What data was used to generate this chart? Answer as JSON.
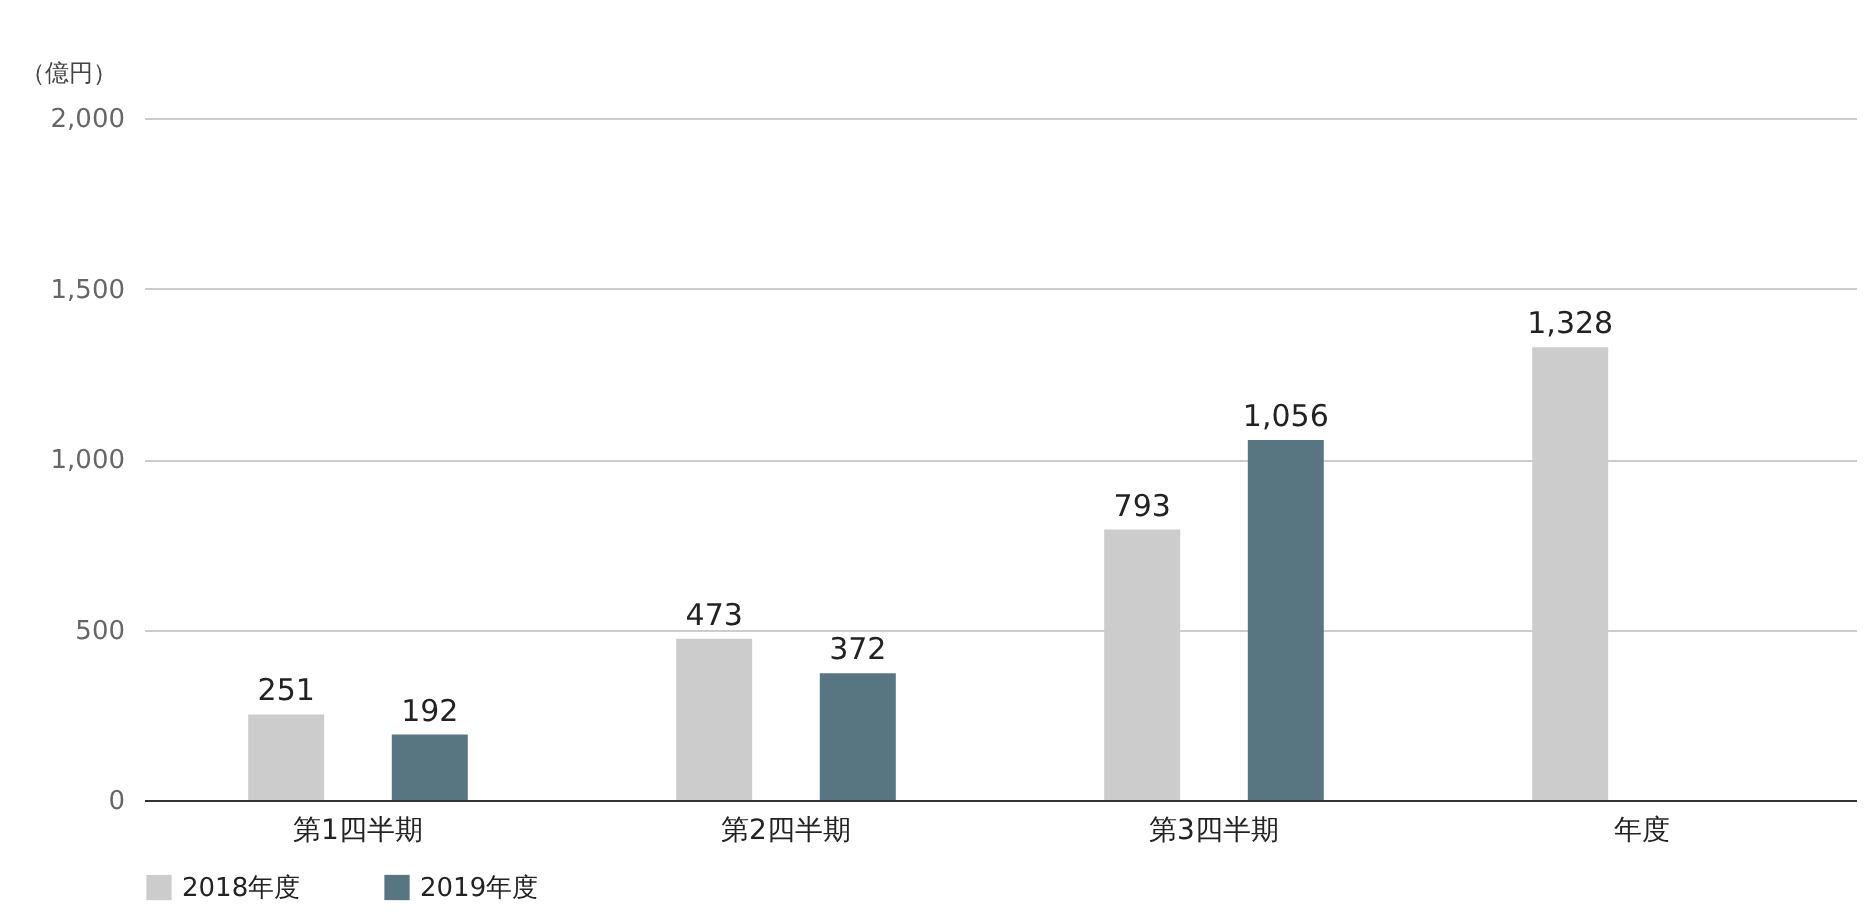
{
  "chart_data": {
    "type": "bar",
    "ylabel": "（億円）",
    "categories": [
      "第1四半期",
      "第2四半期",
      "第3四半期",
      "年度"
    ],
    "series": [
      {
        "name": "2018年度",
        "color": "#cccccc",
        "values": [
          251,
          473,
          793,
          1328
        ],
        "value_labels": [
          "251",
          "473",
          "793",
          "1,328"
        ]
      },
      {
        "name": "2019年度",
        "color": "#587682",
        "values": [
          192,
          372,
          1056,
          null
        ],
        "value_labels": [
          "192",
          "372",
          "1,056",
          null
        ]
      }
    ],
    "ylim": [
      0,
      2000
    ],
    "yticks": [
      0,
      {
        "value": 500,
        "label": "500"
      },
      {
        "value": 1000,
        "label": "1,000"
      },
      {
        "value": 1500,
        "label": "1,500"
      },
      {
        "value": 2000,
        "label": "2,000"
      }
    ],
    "grid": "y",
    "legend": "bottom left"
  }
}
